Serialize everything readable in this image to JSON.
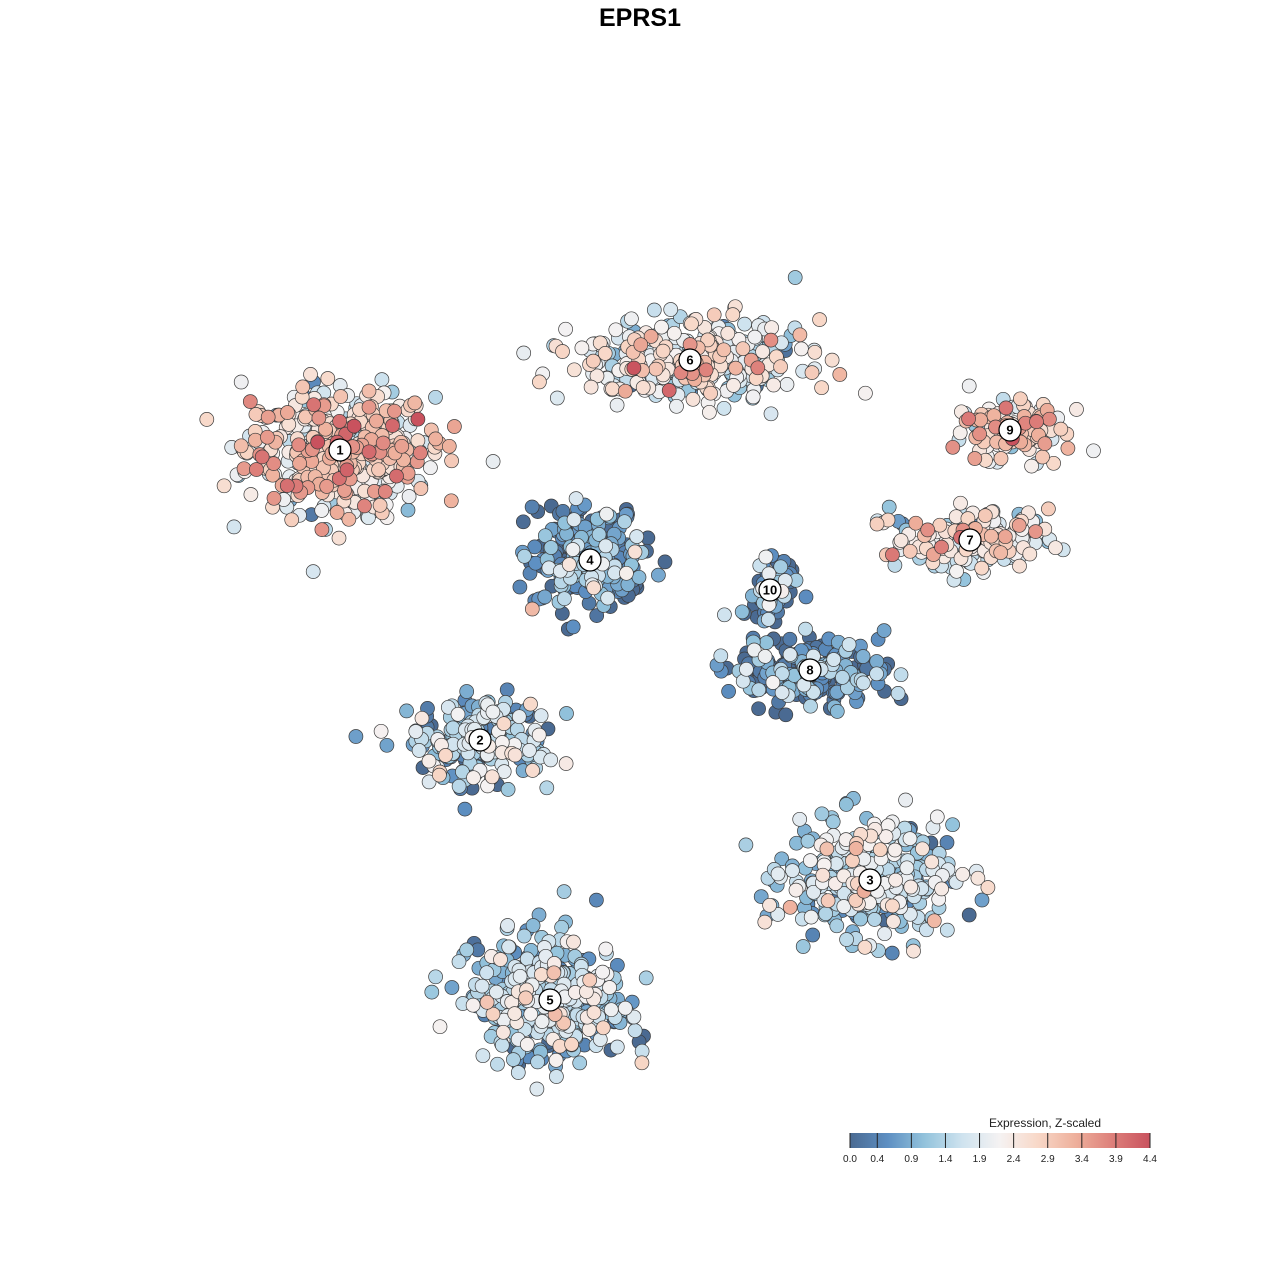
{
  "chart_data": {
    "type": "scatter",
    "title": "EPRS1",
    "xlabel": "",
    "ylabel": "",
    "grid": false,
    "legend": {
      "title": "Expression, Z-scaled",
      "placement": "bottom-right",
      "ticks": [
        "0.0",
        "0.4",
        "0.9",
        "1.4",
        "1.9",
        "2.4",
        "2.9",
        "3.4",
        "3.9",
        "4.4"
      ],
      "range": [
        0.0,
        4.4
      ],
      "colors": [
        "#4a6a92",
        "#5d8fc2",
        "#93c3dc",
        "#cfe3ef",
        "#f5f2f2",
        "#f8d8c8",
        "#eeb09c",
        "#dd7f7a",
        "#c9525e"
      ]
    },
    "clusters": [
      {
        "label": "1",
        "x": -30,
        "y": 20,
        "mean_expression": 2.4
      },
      {
        "label": "2",
        "x": -16,
        "y": -9,
        "mean_expression": 1.1
      },
      {
        "label": "3",
        "x": 23,
        "y": -23,
        "mean_expression": 1.3
      },
      {
        "label": "4",
        "x": -5,
        "y": 9,
        "mean_expression": 0.5
      },
      {
        "label": "5",
        "x": -9,
        "y": -35,
        "mean_expression": 1.2
      },
      {
        "label": "6",
        "x": 5,
        "y": 29,
        "mean_expression": 1.9
      },
      {
        "label": "7",
        "x": 33,
        "y": 11,
        "mean_expression": 2.0
      },
      {
        "label": "8",
        "x": 17,
        "y": -2,
        "mean_expression": 0.5
      },
      {
        "label": "9",
        "x": 37,
        "y": 22,
        "mean_expression": 2.3
      },
      {
        "label": "10",
        "x": 13,
        "y": 6,
        "mean_expression": 0.6
      }
    ]
  }
}
